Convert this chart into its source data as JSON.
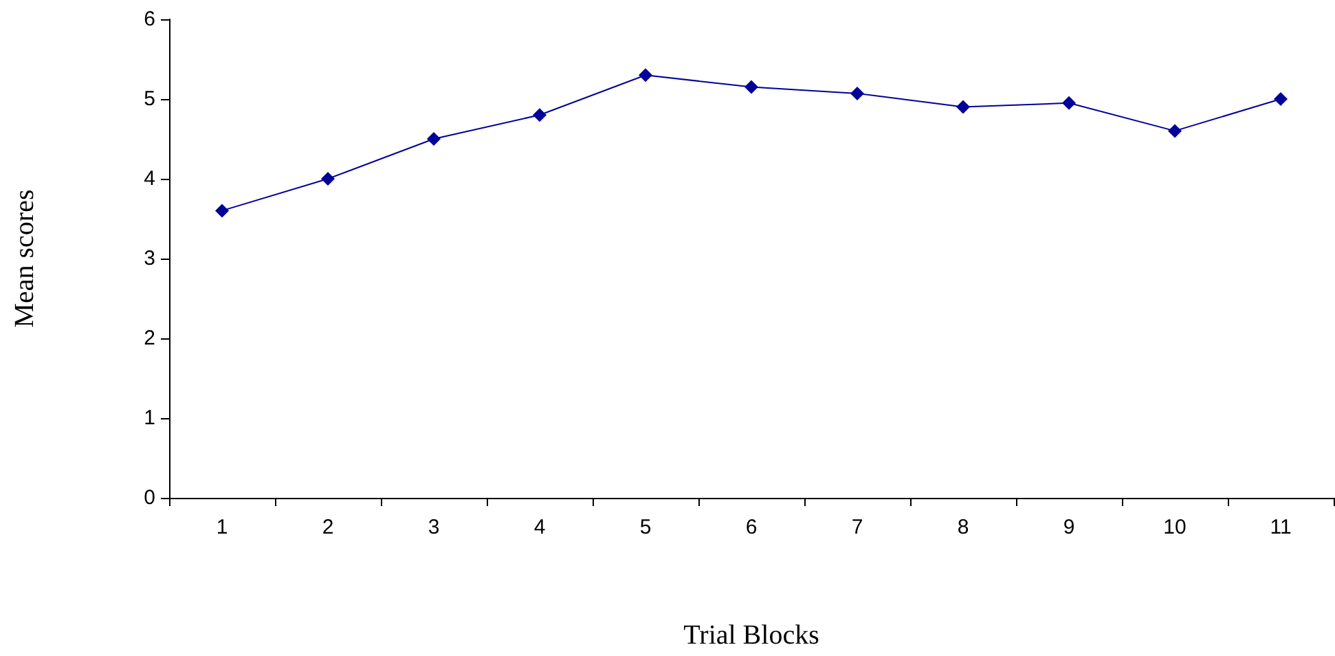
{
  "chart_data": {
    "type": "line",
    "xlabel": "Trial Blocks",
    "ylabel": "Mean scores",
    "categories": [
      "1",
      "2",
      "3",
      "4",
      "5",
      "6",
      "7",
      "8",
      "9",
      "10",
      "11"
    ],
    "series": [
      {
        "color": "#000099",
        "values": [
          3.6,
          4.0,
          4.5,
          4.8,
          5.3,
          5.15,
          5.07,
          4.9,
          4.95,
          4.6,
          5.0
        ]
      }
    ],
    "ylim": [
      0,
      6
    ],
    "yticks": [
      0,
      1,
      2,
      3,
      4,
      5,
      6
    ],
    "grid": false,
    "marker": "diamond",
    "line_style": "solid"
  }
}
